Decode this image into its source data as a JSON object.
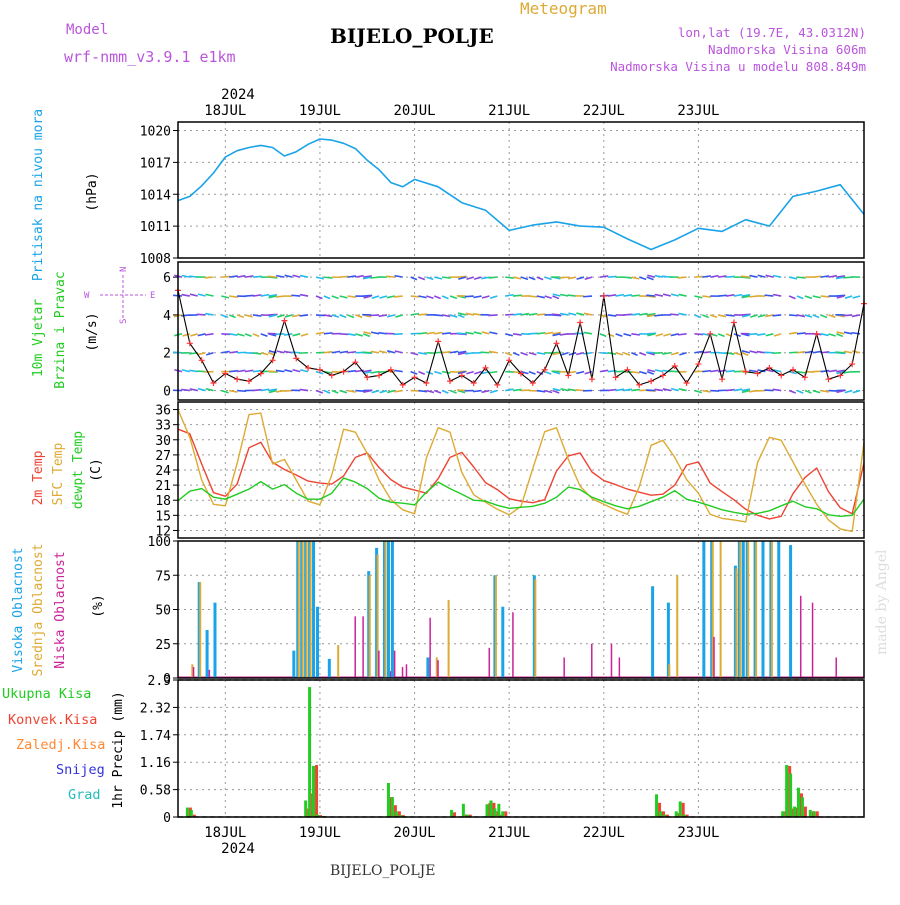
{
  "header": {
    "model_label": "Model",
    "model_name": "wrf-nmm_v3.9.1  e1km",
    "title": "BIJELO_POLJE",
    "subtitle": "Meteogram",
    "lonlat": "lon,lat (19.7E, 43.0312N)",
    "altitude": "Nadmorska Visina 606m",
    "model_altitude": "Nadmorska Visina u modelu 808.849m",
    "credit": "made by Angel"
  },
  "footer": {
    "station": "BIJELO_POLJE"
  },
  "colors": {
    "pressure": "#1aa3e8",
    "wind_title": "#22cc22",
    "wind_speed": "#000000",
    "wind_speed_marker": "#ff3333",
    "t2m": "#ee4433",
    "tsfc": "#ddaa33",
    "dewpt": "#22cc22",
    "cloud_high": "#1aa3e8",
    "cloud_mid": "#ddaa33",
    "cloud_low": "#cc2299",
    "precip_total": "#22cc22",
    "precip_conv": "#ee4433",
    "precip_frozen": "#ff8833",
    "precip_snow": "#3333dd",
    "precip_graupel": "#22bbbb",
    "legend_purple": "#bb55dd"
  },
  "chart_data": [
    {
      "panel": "pressure",
      "type": "line",
      "ylabel_lines": [
        "Pritisak na nivou mora",
        "(hPa)"
      ],
      "yticks": [
        "1008",
        "1011",
        "1014",
        "1017",
        "1020"
      ],
      "ylim": [
        1008,
        1020.8
      ],
      "grid": true,
      "x_hours": [
        0,
        3,
        6,
        9,
        12,
        15,
        18,
        21,
        24,
        27,
        30,
        33,
        36,
        39,
        42,
        45,
        48,
        51,
        54,
        57,
        60,
        66,
        72,
        78,
        84,
        90,
        96,
        102,
        108,
        114,
        120,
        126,
        132,
        138,
        144,
        150,
        156,
        162,
        168,
        174
      ],
      "values": [
        1013.4,
        1013.8,
        1014.8,
        1016.0,
        1017.5,
        1018.1,
        1018.4,
        1018.6,
        1018.4,
        1017.6,
        1018.0,
        1018.7,
        1019.2,
        1019.1,
        1018.8,
        1018.3,
        1017.2,
        1016.3,
        1015.1,
        1014.7,
        1015.4,
        1014.7,
        1013.2,
        1012.5,
        1010.6,
        1011.1,
        1011.4,
        1011.0,
        1010.9,
        1009.8,
        1008.8,
        1009.7,
        1010.8,
        1010.5,
        1011.6,
        1011.0,
        1013.8,
        1014.3,
        1014.9,
        1012.1
      ]
    },
    {
      "panel": "wind",
      "type": "line",
      "ylabel_lines": [
        "10m Vjetar",
        "Brzina i Pravac",
        "(m/s)"
      ],
      "legend_compass": [
        "N",
        "S",
        "W",
        "E"
      ],
      "yticks": [
        "0",
        "2",
        "4",
        "6"
      ],
      "ylim": [
        -0.5,
        6.8
      ],
      "grid": true,
      "x_hours": [
        0,
        3,
        6,
        9,
        12,
        15,
        18,
        21,
        24,
        27,
        30,
        33,
        36,
        39,
        42,
        45,
        48,
        51,
        54,
        57,
        60,
        63,
        66,
        69,
        72,
        75,
        78,
        81,
        84,
        87,
        90,
        93,
        96,
        99,
        102,
        105,
        108,
        111,
        114,
        117,
        120,
        123,
        126,
        129,
        132,
        135,
        138,
        141,
        144,
        147,
        150,
        153,
        156,
        159,
        162,
        165,
        168,
        171,
        174
      ],
      "speed": [
        5.3,
        2.5,
        1.6,
        0.4,
        0.9,
        0.6,
        0.5,
        0.9,
        1.6,
        3.7,
        1.7,
        1.2,
        1.1,
        0.8,
        1.0,
        1.5,
        0.7,
        0.8,
        1.1,
        0.3,
        0.7,
        0.4,
        2.6,
        0.5,
        0.8,
        0.4,
        1.2,
        0.3,
        1.6,
        0.9,
        0.4,
        1.1,
        2.5,
        0.8,
        3.6,
        0.6,
        5.0,
        0.7,
        1.1,
        0.3,
        0.5,
        0.8,
        1.3,
        0.4,
        1.4,
        3.0,
        0.6,
        3.6,
        1.0,
        0.9,
        1.2,
        0.8,
        1.1,
        0.7,
        3.0,
        0.6,
        0.8,
        1.4,
        4.6
      ]
    },
    {
      "panel": "temperature",
      "type": "line",
      "ylabel_lines": [
        "2m Temp",
        "SFC Temp",
        "dewpt Temp",
        "(C)"
      ],
      "yticks": [
        "12",
        "15",
        "18",
        "21",
        "24",
        "27",
        "30",
        "33",
        "36"
      ],
      "ylim": [
        10.5,
        37.5
      ],
      "grid": true,
      "x_hours": [
        0,
        3,
        6,
        9,
        12,
        15,
        18,
        21,
        24,
        27,
        30,
        33,
        36,
        39,
        42,
        45,
        48,
        51,
        54,
        57,
        60,
        63,
        66,
        69,
        72,
        75,
        78,
        81,
        84,
        87,
        90,
        93,
        96,
        99,
        102,
        105,
        108,
        111,
        114,
        117,
        120,
        123,
        126,
        129,
        132,
        135,
        138,
        141,
        144,
        147,
        150,
        153,
        156,
        159,
        162,
        165,
        168,
        171,
        174
      ],
      "series": [
        {
          "name": "2m Temp",
          "values": [
            32.1,
            31.2,
            25.2,
            19.5,
            18.8,
            21.2,
            28.4,
            29.5,
            25.5,
            24.1,
            23.0,
            21.8,
            21.4,
            21.2,
            22.8,
            26.5,
            27.4,
            24.5,
            22.1,
            20.6,
            20.0,
            19.4,
            22.3,
            26.5,
            27.5,
            24.6,
            21.5,
            20.1,
            18.3,
            17.8,
            17.5,
            18.1,
            23.8,
            26.8,
            27.4,
            23.6,
            21.9,
            21.1,
            20.2,
            19.6,
            19.0,
            19.2,
            21.0,
            25.0,
            25.6,
            21.4,
            19.7,
            18.1,
            16.2,
            15.0,
            14.3,
            14.8,
            19.3,
            22.5,
            24.4,
            19.7,
            16.5,
            15.3,
            25.4
          ]
        },
        {
          "name": "SFC Temp",
          "values": [
            36.0,
            30.5,
            22.0,
            17.2,
            16.9,
            25.3,
            35.0,
            35.3,
            25.2,
            26.1,
            22.0,
            17.8,
            17.1,
            23.0,
            32.1,
            31.5,
            27.3,
            22.0,
            18.1,
            16.1,
            15.3,
            26.4,
            32.4,
            31.5,
            23.5,
            19.1,
            17.6,
            16.2,
            15.1,
            16.8,
            24.3,
            31.6,
            32.4,
            26.1,
            20.8,
            18.3,
            17.2,
            16.1,
            15.2,
            20.7,
            28.9,
            29.9,
            26.5,
            22.1,
            19.4,
            15.2,
            14.4,
            14.1,
            13.7,
            25.5,
            30.5,
            29.9,
            25.6,
            21.2,
            17.2,
            14.1,
            12.3,
            11.8,
            29.5
          ]
        },
        {
          "name": "dewpt Temp",
          "values": [
            17.9,
            19.8,
            20.3,
            18.6,
            18.2,
            19.2,
            20.2,
            21.7,
            20.2,
            21.1,
            19.4,
            18.2,
            18.2,
            19.4,
            22.4,
            21.6,
            20.3,
            18.4,
            17.6,
            17.4,
            17.1,
            19.6,
            21.6,
            20.3,
            19.2,
            18.0,
            17.8,
            17.0,
            16.4,
            16.6,
            16.8,
            17.4,
            18.6,
            20.6,
            20.1,
            18.6,
            17.7,
            16.9,
            16.3,
            16.8,
            17.7,
            18.6,
            19.9,
            18.2,
            17.6,
            16.9,
            16.1,
            15.6,
            15.2,
            15.4,
            15.9,
            16.9,
            17.8,
            16.7,
            16.3,
            15.1,
            14.8,
            15.0,
            18.2
          ]
        }
      ]
    },
    {
      "panel": "clouds",
      "type": "bar",
      "ylabel_lines": [
        "Visoka Oblacnost",
        "Srednja Oblacnost",
        "Niska Oblacnost",
        "(%)"
      ],
      "yticks": [
        "0",
        "25",
        "50",
        "75",
        "100"
      ],
      "ylim": [
        0,
        100
      ],
      "grid": true,
      "x_hours": [
        3,
        5,
        7,
        9,
        11,
        29,
        30,
        31,
        32,
        33,
        34,
        35,
        36,
        38,
        40,
        44,
        46,
        48,
        50,
        52,
        53,
        54,
        55,
        56,
        57,
        60,
        63,
        65,
        67,
        68,
        78,
        80,
        82,
        84,
        90,
        92,
        97,
        99,
        104,
        106,
        109,
        111,
        113,
        120,
        124,
        126,
        128,
        130,
        133,
        135,
        137,
        138,
        140,
        141,
        142,
        143,
        144,
        146,
        148,
        150,
        152,
        155,
        157,
        160,
        164,
        166
      ],
      "series": [
        {
          "name": "Visoka Oblacnost",
          "values": [
            0,
            70,
            35,
            55,
            0,
            20,
            100,
            100,
            100,
            100,
            100,
            52,
            0,
            14,
            0,
            0,
            0,
            78,
            95,
            100,
            100,
            100,
            0,
            0,
            0,
            0,
            15,
            0,
            0,
            0,
            0,
            75,
            52,
            0,
            75,
            0,
            0,
            0,
            0,
            0,
            0,
            0,
            0,
            67,
            55,
            0,
            0,
            0,
            100,
            100,
            0,
            0,
            0,
            82,
            100,
            100,
            100,
            100,
            100,
            100,
            100,
            97,
            0,
            0,
            0,
            0
          ]
        },
        {
          "name": "Srednja Oblacnost",
          "values": [
            10,
            70,
            0,
            0,
            0,
            0,
            100,
            100,
            100,
            100,
            0,
            0,
            0,
            0,
            24,
            0,
            0,
            75,
            90,
            100,
            0,
            0,
            0,
            0,
            0,
            0,
            0,
            15,
            0,
            57,
            0,
            75,
            0,
            0,
            72,
            0,
            0,
            0,
            0,
            0,
            0,
            0,
            0,
            0,
            10,
            75,
            0,
            0,
            0,
            100,
            100,
            0,
            0,
            80,
            100,
            0,
            100,
            100,
            0,
            100,
            0,
            0,
            0,
            0,
            0,
            0
          ]
        },
        {
          "name": "Niska Oblacnost",
          "values": [
            8,
            0,
            6,
            0,
            0,
            0,
            0,
            0,
            0,
            0,
            0,
            0,
            0,
            0,
            0,
            45,
            45,
            0,
            20,
            0,
            5,
            20,
            0,
            8,
            10,
            0,
            44,
            13,
            0,
            0,
            22,
            0,
            0,
            48,
            0,
            0,
            15,
            0,
            25,
            0,
            25,
            15,
            0,
            0,
            0,
            0,
            0,
            0,
            0,
            30,
            0,
            0,
            0,
            0,
            0,
            0,
            0,
            0,
            0,
            0,
            0,
            0,
            60,
            55,
            0,
            15
          ]
        }
      ]
    },
    {
      "panel": "precipitation",
      "type": "bar",
      "ylabel_lines": [
        "1hr Precip (mm)"
      ],
      "legend": [
        "Ukupna Kisa",
        "Konvek.Kisa",
        "Zaledj.Kisa",
        "Snijeg",
        "Grad"
      ],
      "yticks": [
        "0",
        "0.58",
        "1.16",
        "1.74",
        "2.32",
        "2.9"
      ],
      "ylim": [
        0,
        2.9
      ],
      "grid": true,
      "x_hours": [
        2,
        3,
        32,
        33,
        34,
        35,
        36,
        53,
        54,
        55,
        56,
        57,
        69,
        72,
        73,
        78,
        79,
        80,
        81,
        82,
        121,
        122,
        123,
        126,
        127,
        128,
        153,
        154,
        155,
        156,
        157,
        158,
        160,
        161
      ],
      "series": [
        {
          "name": "Ukupna Kisa",
          "values": [
            0.2,
            0.15,
            0.35,
            2.75,
            1.08,
            0.05,
            0.02,
            0.72,
            0.42,
            0.12,
            0.04,
            0.02,
            0.15,
            0.28,
            0.05,
            0.27,
            0.35,
            0.18,
            0.28,
            0.12,
            0.48,
            0.12,
            0.05,
            0.12,
            0.33,
            0.05,
            0.12,
            1.1,
            0.92,
            0.22,
            0.62,
            0.42,
            0.15,
            0.12
          ]
        },
        {
          "name": "Konvek.Kisa",
          "values": [
            0.2,
            0.05,
            0.18,
            0.5,
            1.1,
            0.04,
            0.02,
            0.42,
            0.25,
            0.12,
            0.04,
            0.0,
            0.1,
            0.05,
            0.05,
            0.3,
            0.3,
            0.12,
            0.05,
            0.12,
            0.3,
            0.12,
            0.05,
            0.08,
            0.3,
            0.05,
            0.12,
            1.08,
            0.18,
            0.2,
            0.5,
            0.22,
            0.12,
            0.12
          ]
        }
      ]
    }
  ],
  "time_axis": {
    "year": "2024",
    "day_labels": [
      "18JUL",
      "19JUL",
      "20JUL",
      "21JUL",
      "22JUL",
      "23JUL"
    ],
    "first_midnight_hour": 12,
    "range_hours": [
      0,
      174
    ]
  }
}
